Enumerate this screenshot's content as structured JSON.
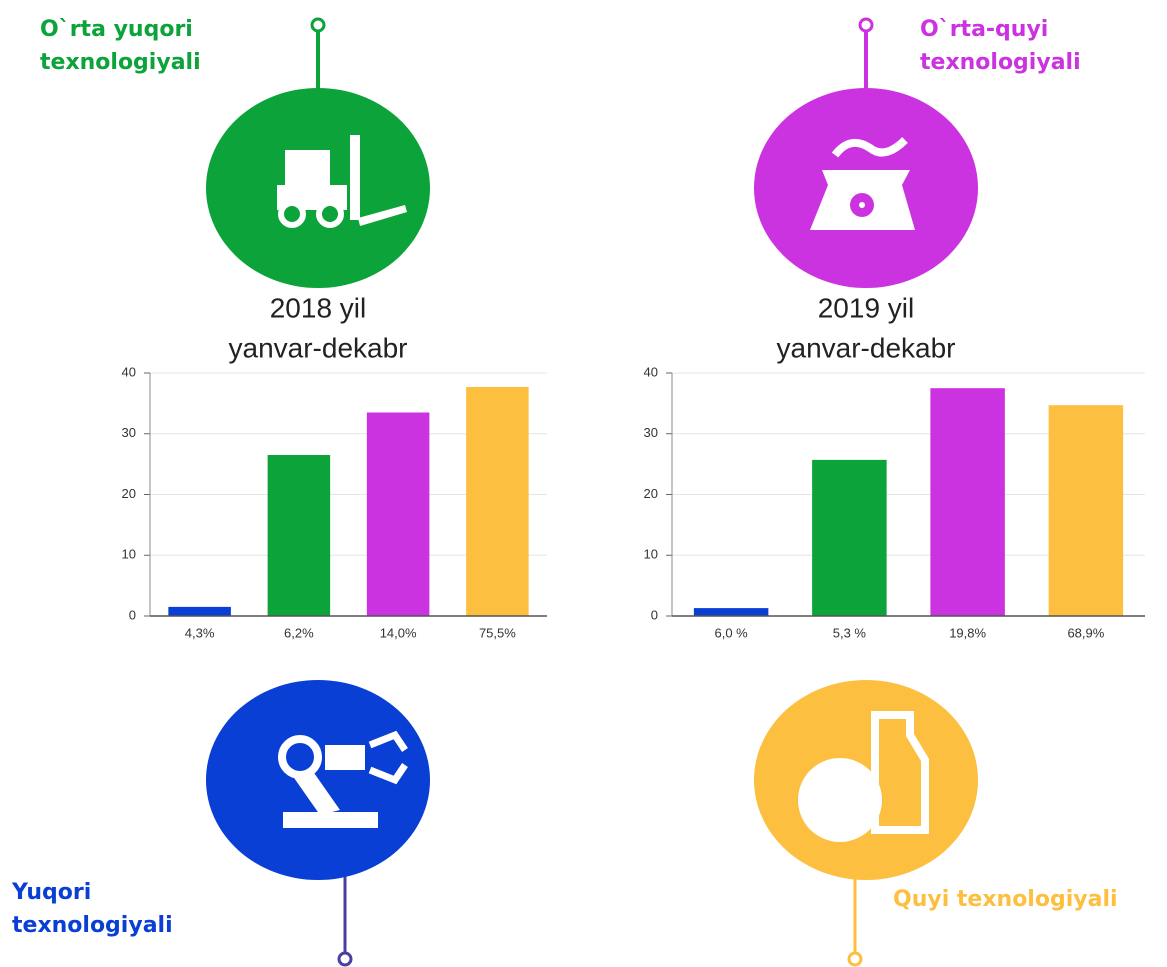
{
  "chart_data": [
    {
      "type": "bar",
      "title": "2018 yil",
      "subtitle": "yanvar-dekabr",
      "categories": [
        "4,3%",
        "6,2%",
        "14,0%",
        "75,5%"
      ],
      "values": [
        1.5,
        26.5,
        33.5,
        37.7
      ],
      "colors": [
        "#0a3fd6",
        "#0ba33a",
        "#cc33e0",
        "#fdbf40"
      ],
      "ylim": [
        0,
        40
      ],
      "yticks": [
        0,
        10,
        20,
        30,
        40
      ],
      "grid": true
    },
    {
      "type": "bar",
      "title": "2019 yil",
      "subtitle": "yanvar-dekabr",
      "categories": [
        "6,0 %",
        "5,3 %",
        "19,8%",
        "68,9%"
      ],
      "values": [
        1.3,
        25.7,
        37.5,
        34.7
      ],
      "colors": [
        "#0a3fd6",
        "#0ba33a",
        "#cc33e0",
        "#fdbf40"
      ],
      "ylim": [
        0,
        40
      ],
      "yticks": [
        0,
        10,
        20,
        30,
        40
      ],
      "grid": true
    }
  ],
  "groups": [
    {
      "lines": [
        "O`rta yuqori",
        "texnologiyali"
      ],
      "color": "#0ba33a"
    },
    {
      "lines": [
        "O`rta-quyi",
        "texnologiyali"
      ],
      "color": "#cc33e0"
    },
    {
      "lines": [
        "Yuqori",
        "texnologiyali"
      ],
      "color": "#0a3fd6"
    },
    {
      "lines": [
        "Quyi texnologiyali"
      ],
      "color": "#fdbf40"
    }
  ]
}
